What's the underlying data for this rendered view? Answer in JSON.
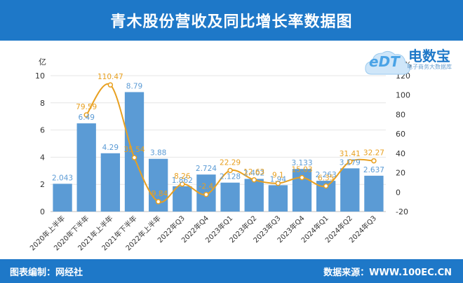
{
  "header": {
    "title": "青木股份营收及同比增长率数据图"
  },
  "footer": {
    "left": "图表编制：网经社",
    "right": "数据来源：WWW.100EC.CN"
  },
  "logo": {
    "mark": "eDT",
    "name": "电数宝",
    "tagline": "电子商务大数据库"
  },
  "colors": {
    "bar": "#5b9bd5",
    "line": "#e8a020",
    "bar_label": "#5b9bd5",
    "line_label": "#e8a020",
    "header": "#1e78c8"
  },
  "chart_data": {
    "type": "bar",
    "categories": [
      "2020年上半年",
      "2020年下半年",
      "2021年上半年",
      "2021年下半年",
      "2022年上半年",
      "2022年Q3",
      "2022年Q4",
      "2023年Q1",
      "2023年Q2",
      "2023年Q3",
      "2023年Q4",
      "2024年Q1",
      "2024年Q2",
      "2024年Q3"
    ],
    "series": [
      {
        "name": "",
        "type": "bar",
        "axis": "left",
        "values": [
          2.043,
          6.49,
          4.29,
          8.79,
          3.88,
          1.862,
          2.724,
          2.128,
          2.402,
          1.94,
          3.133,
          2.263,
          3.179,
          2.637
        ],
        "labels": [
          "2.043",
          "6.49",
          "4.29",
          "8.79",
          "3.88",
          "1.862",
          "2.724",
          "2.128",
          "2.402",
          "1.94",
          "3.133",
          "2.263",
          "3.179",
          "2.637"
        ]
      },
      {
        "name": "",
        "type": "line",
        "axis": "right",
        "values": [
          null,
          79.59,
          110.47,
          35.54,
          -9.84,
          8.26,
          -2.4,
          22.29,
          12.63,
          9.1,
          15.03,
          6.35,
          31.41,
          32.27
        ],
        "labels": [
          "",
          "79.59",
          "110.47",
          "35.54",
          "-9.84",
          "8.26",
          "-2.4",
          "22.29",
          "12.63",
          "9.1",
          "15.03",
          "6.35",
          "31.41",
          "32.27"
        ]
      }
    ],
    "y_left": {
      "unit": "亿",
      "min": 0,
      "max": 10,
      "ticks": [
        0,
        2,
        4,
        6,
        8,
        10
      ]
    },
    "y_right": {
      "unit": "%",
      "min": -20,
      "max": 120,
      "ticks": [
        -20,
        0,
        20,
        40,
        60,
        80,
        100,
        120
      ]
    },
    "grid": true,
    "legend": "none"
  }
}
